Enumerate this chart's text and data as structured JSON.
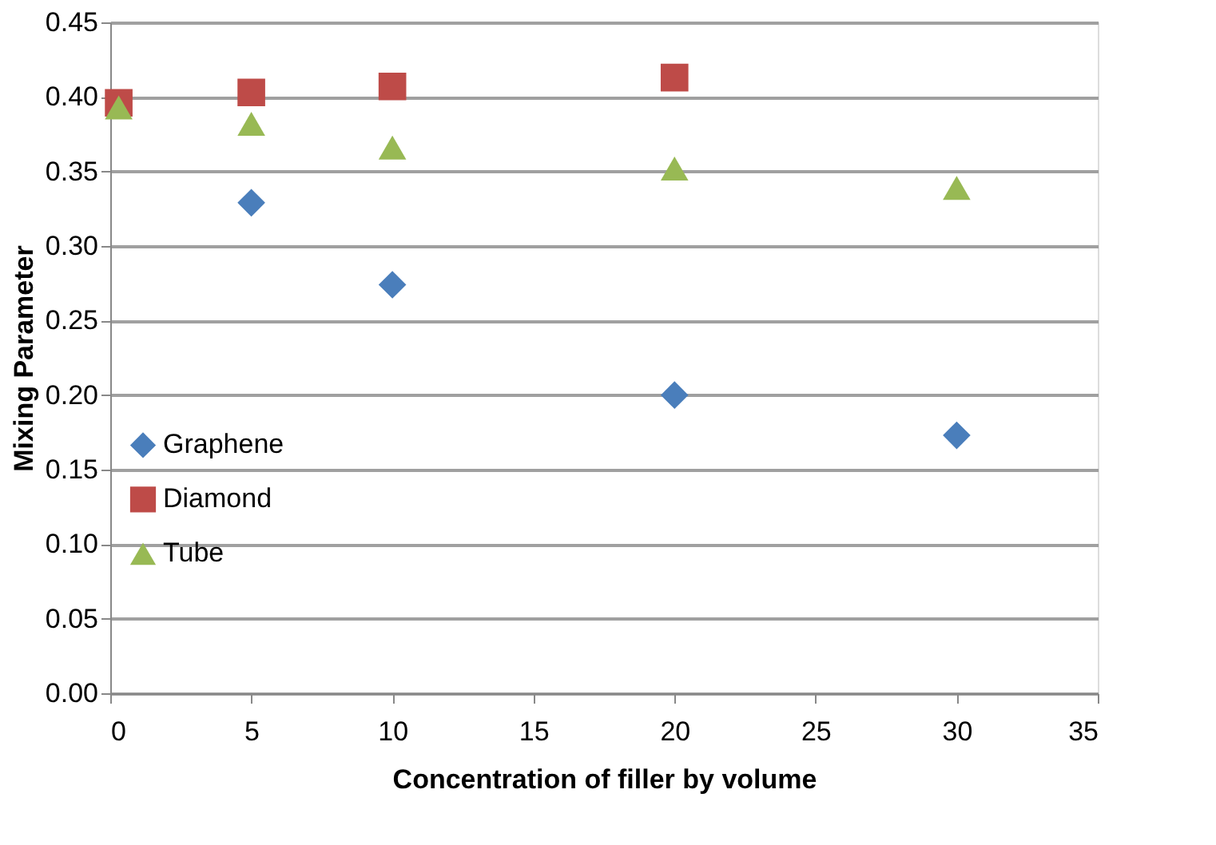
{
  "chart_data": {
    "type": "scatter",
    "xlabel": "Concentration of filler by volume",
    "ylabel": "Mixing Parameter",
    "xlim": [
      0,
      35
    ],
    "xticks": [
      0,
      5,
      10,
      15,
      20,
      25,
      30,
      35
    ],
    "ylim": [
      0,
      0.45
    ],
    "yticks": [
      {
        "value": 0,
        "label": "0.00"
      },
      {
        "value": 0.05,
        "label": "0.05"
      },
      {
        "value": 0.1,
        "label": "0.10"
      },
      {
        "value": 0.15,
        "label": "0.15"
      },
      {
        "value": 0.2,
        "label": "0.20"
      },
      {
        "value": 0.25,
        "label": "0.25"
      },
      {
        "value": 0.3,
        "label": "0.30"
      },
      {
        "value": 0.35,
        "label": "0.35"
      },
      {
        "value": 0.4,
        "label": "0.40"
      },
      {
        "value": 0.45,
        "label": "0.45"
      }
    ],
    "grid": "y",
    "legend": "left",
    "series": [
      {
        "name": "Graphene",
        "color": "#4a7ebb",
        "marker": "diamond",
        "x": [
          5,
          10,
          20,
          30
        ],
        "values": [
          0.329,
          0.274,
          0.2,
          0.173
        ]
      },
      {
        "name": "Diamond",
        "color": "#be4b48",
        "marker": "square",
        "x": [
          0.3,
          5,
          10,
          20
        ],
        "values": [
          0.396,
          0.403,
          0.407,
          0.413
        ]
      },
      {
        "name": "Tube",
        "color": "#98b954",
        "marker": "triangle",
        "x": [
          0.3,
          5,
          10,
          20,
          30
        ],
        "values": [
          0.393,
          0.382,
          0.366,
          0.352,
          0.339
        ]
      }
    ]
  }
}
